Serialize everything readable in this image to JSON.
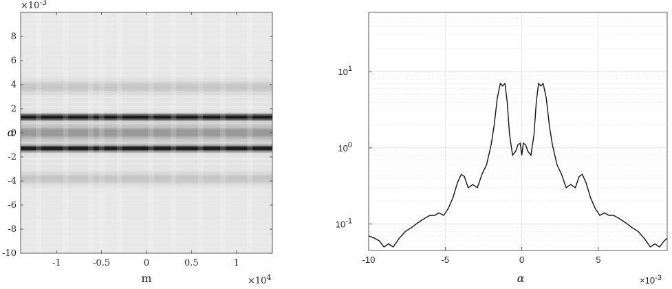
{
  "chart_data": [
    {
      "type": "heatmap",
      "colormap": "gray (dark = high)",
      "xlabel": "m",
      "ylabel": "α",
      "x_multiplier": "×10",
      "x_multiplier_exp": "4",
      "y_multiplier": "×10",
      "y_multiplier_exp": "-3",
      "xlim": [
        -1.4,
        1.4
      ],
      "ylim": [
        -10,
        10
      ],
      "x_ticks": [
        "-1",
        "-0.5",
        "0",
        "0.5",
        "1"
      ],
      "x_tick_values": [
        -1,
        -0.5,
        0,
        0.5,
        1
      ],
      "y_ticks": [
        "8",
        "6",
        "4",
        "2",
        "0",
        "-2",
        "-4",
        "-6",
        "-8",
        "-10"
      ],
      "y_tick_values": [
        8,
        6,
        4,
        2,
        0,
        -2,
        -4,
        -6,
        -8,
        -10
      ],
      "bands": [
        {
          "alpha_center": 1.3,
          "intensity": 0.95,
          "width": 0.25
        },
        {
          "alpha_center": -1.3,
          "intensity": 0.95,
          "width": 0.25
        },
        {
          "alpha_center": 0.0,
          "intensity": 0.35,
          "width": 0.6
        },
        {
          "alpha_center": 3.8,
          "intensity": 0.15,
          "width": 0.5
        },
        {
          "alpha_center": -3.8,
          "intensity": 0.15,
          "width": 0.5
        }
      ]
    },
    {
      "type": "line",
      "xlabel": "α",
      "x_multiplier": "×10",
      "x_multiplier_exp": "-3",
      "xlim": [
        -10,
        9.5
      ],
      "ylim": [
        0.045,
        60
      ],
      "y_scale": "log",
      "grid": true,
      "x_ticks": [
        "-10",
        "-5",
        "0",
        "5"
      ],
      "x_tick_values": [
        -10,
        -5,
        0,
        5
      ],
      "y_ticks_base": "10",
      "y_ticks_exp": [
        "1",
        "0",
        "-1"
      ],
      "y_tick_values": [
        10,
        1,
        0.1
      ],
      "series": [
        {
          "color": "#111111",
          "x": [
            -10,
            -9.6,
            -9.3,
            -9.0,
            -8.7,
            -8.4,
            -8.0,
            -7.6,
            -7.2,
            -6.9,
            -6.6,
            -6.3,
            -6.0,
            -5.7,
            -5.4,
            -5.1,
            -4.8,
            -4.5,
            -4.2,
            -3.95,
            -3.75,
            -3.5,
            -3.2,
            -2.9,
            -2.6,
            -2.3,
            -2.0,
            -1.8,
            -1.6,
            -1.4,
            -1.25,
            -1.1,
            -0.95,
            -0.8,
            -0.6,
            -0.4,
            -0.25,
            -0.1,
            0.0,
            0.1,
            0.25,
            0.4,
            0.6,
            0.8,
            0.95,
            1.1,
            1.25,
            1.4,
            1.6,
            1.8,
            2.0,
            2.3,
            2.6,
            2.9,
            3.2,
            3.5,
            3.75,
            3.95,
            4.2,
            4.5,
            4.8,
            5.1,
            5.4,
            5.7,
            6.0,
            6.3,
            6.6,
            6.9,
            7.2,
            7.6,
            8.0,
            8.4,
            8.7,
            9.0,
            9.3,
            9.5
          ],
          "y": [
            0.07,
            0.065,
            0.06,
            0.05,
            0.055,
            0.05,
            0.065,
            0.08,
            0.09,
            0.1,
            0.11,
            0.12,
            0.13,
            0.13,
            0.14,
            0.13,
            0.16,
            0.22,
            0.35,
            0.45,
            0.42,
            0.3,
            0.33,
            0.3,
            0.45,
            0.6,
            1.1,
            2.0,
            4.5,
            7.0,
            6.5,
            7.0,
            4.0,
            1.5,
            0.8,
            0.9,
            1.1,
            1.15,
            0.8,
            1.15,
            1.1,
            0.9,
            0.8,
            1.5,
            4.0,
            7.0,
            6.5,
            7.0,
            4.5,
            2.0,
            1.1,
            0.6,
            0.45,
            0.3,
            0.33,
            0.3,
            0.42,
            0.45,
            0.35,
            0.22,
            0.16,
            0.13,
            0.14,
            0.13,
            0.13,
            0.12,
            0.11,
            0.1,
            0.09,
            0.08,
            0.065,
            0.05,
            0.055,
            0.05,
            0.06,
            0.065
          ]
        }
      ]
    }
  ]
}
